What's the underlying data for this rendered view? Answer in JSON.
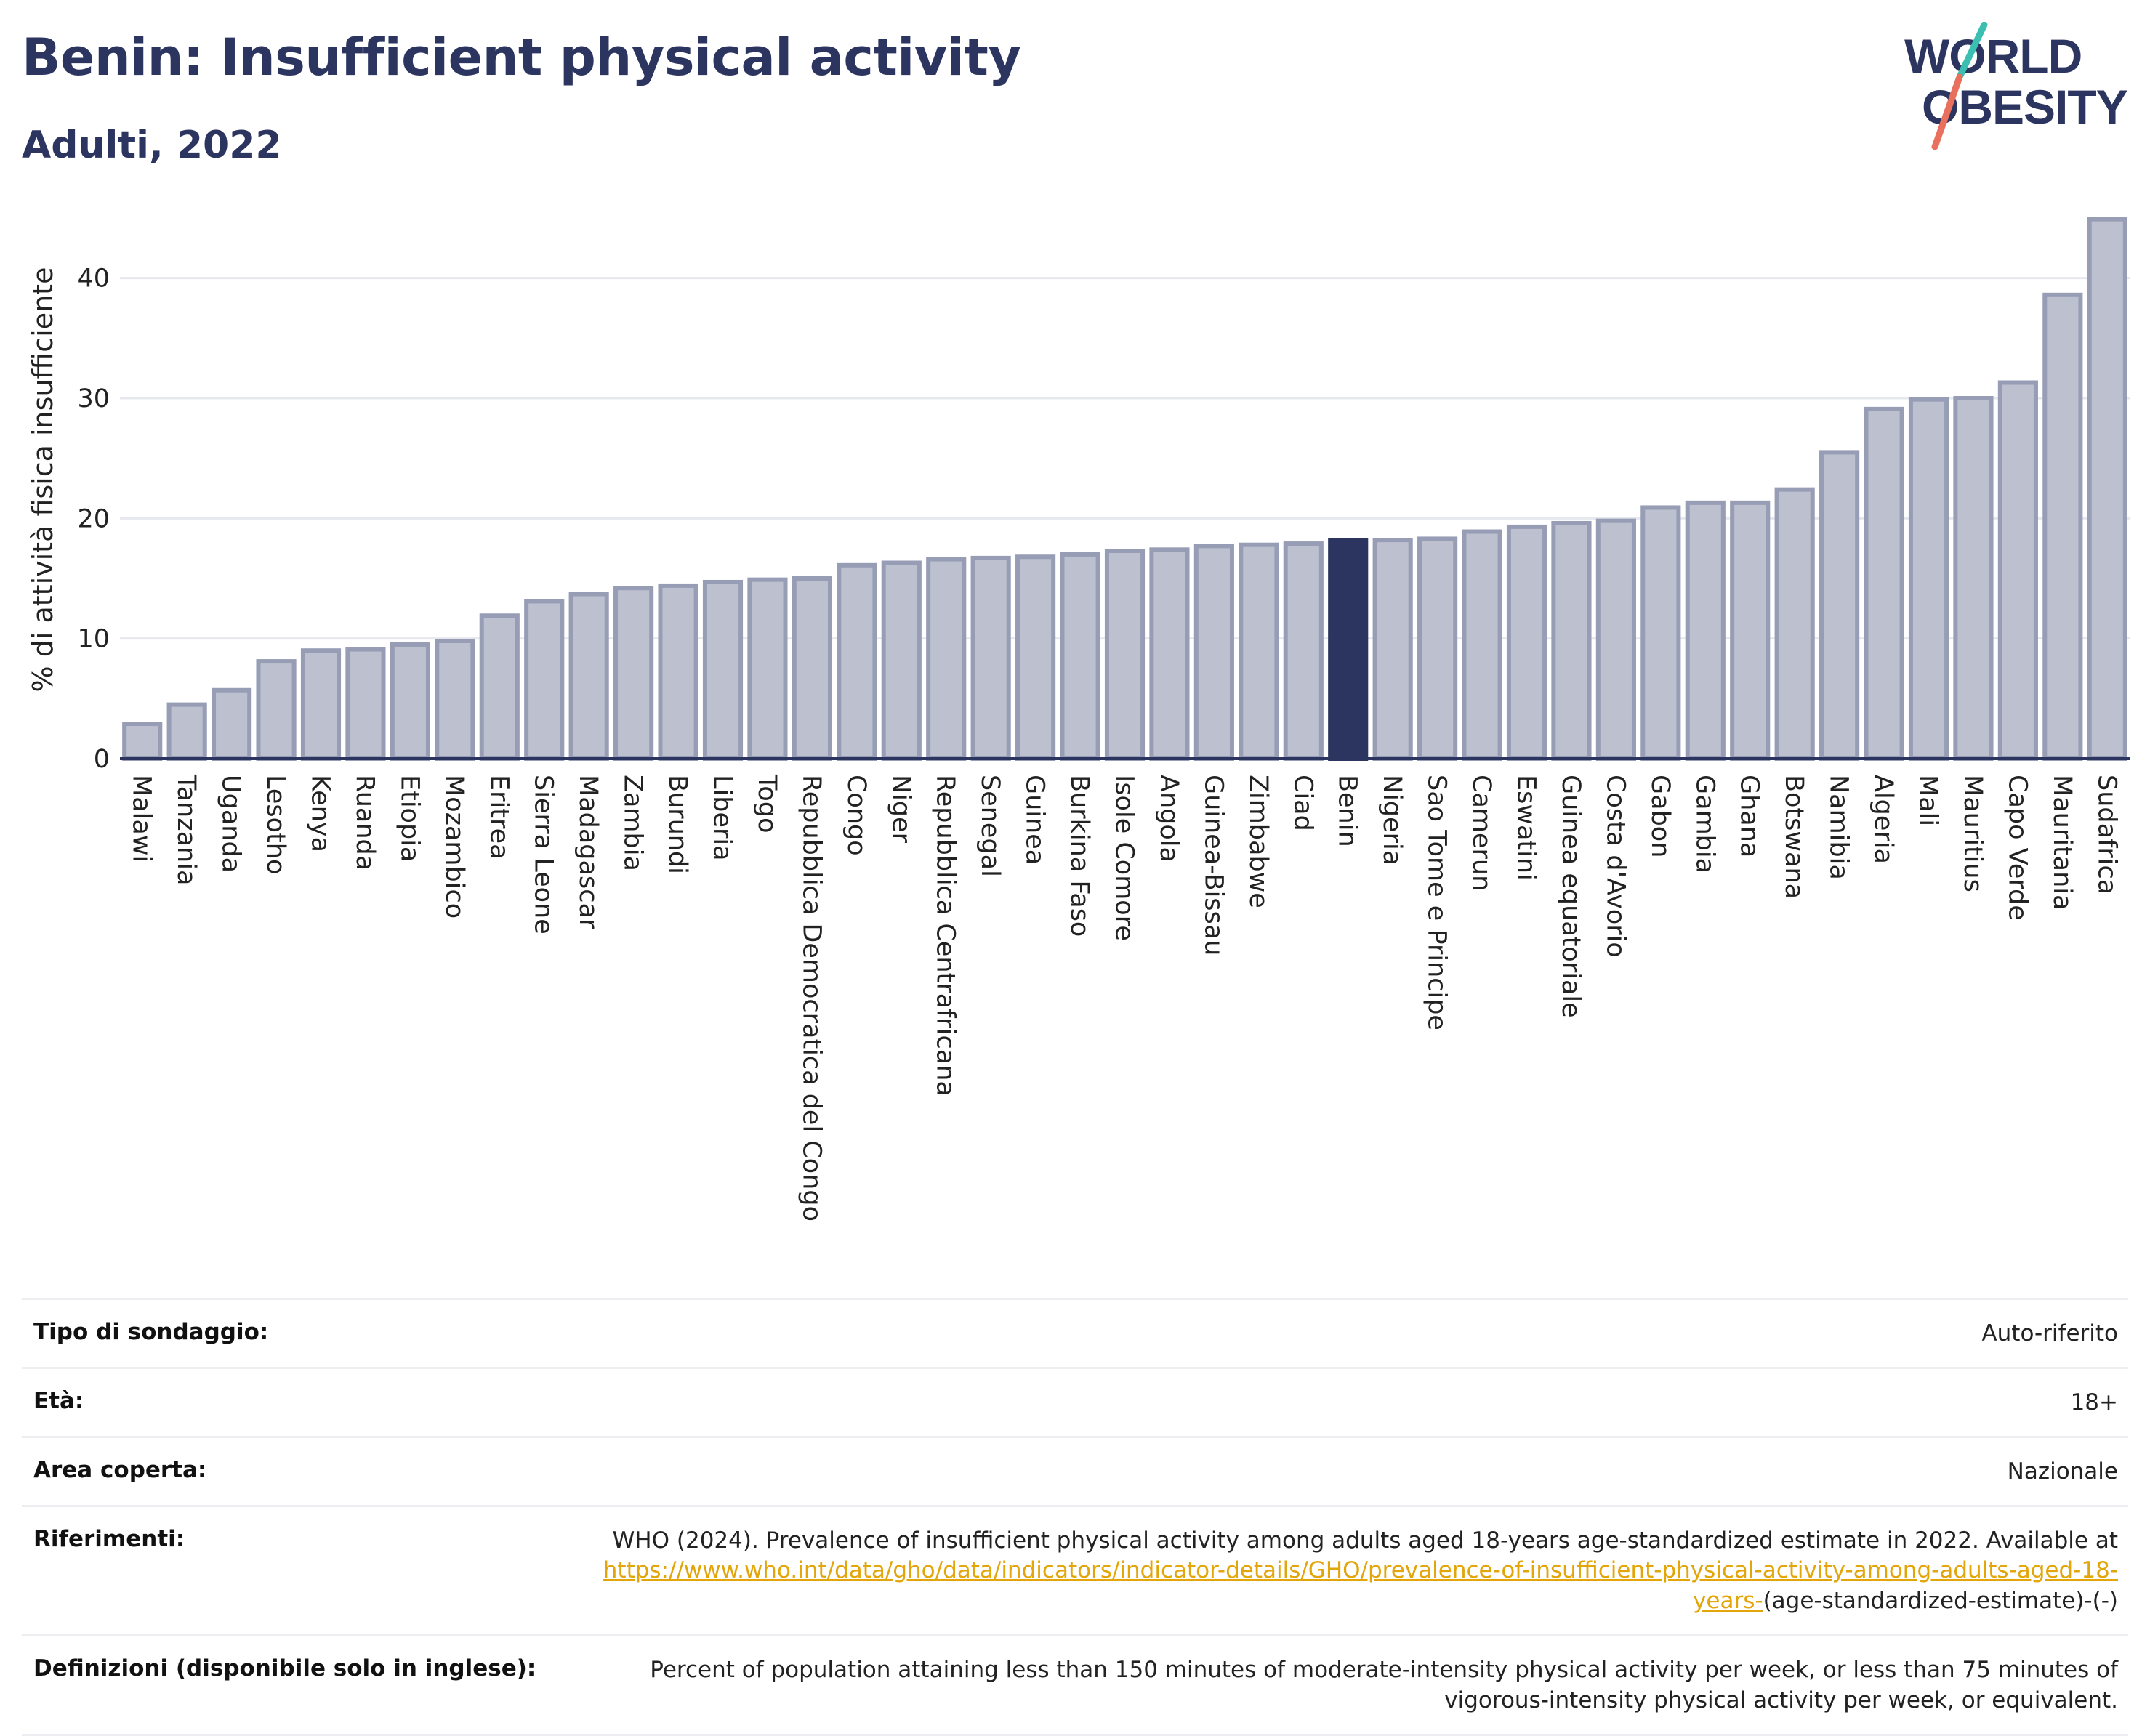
{
  "header": {
    "title": "Benin: Insufficient physical activity",
    "subtitle": "Adulti, 2022"
  },
  "logo": {
    "line1": "WORLD",
    "line2": "OBESITY",
    "colors": {
      "text": "#2c3560",
      "slash_top": "#3bbfb0",
      "slash_bottom": "#e8705c"
    }
  },
  "colors": {
    "bar": "#bcc0cf",
    "bar_border": "#979db5",
    "highlight": "#2c3560",
    "grid": "#e6e8ee",
    "axis": "#2c3560"
  },
  "chart_data": {
    "type": "bar",
    "ylabel": "% di attività fisica insufficiente",
    "xlabel": "",
    "ylim": [
      0,
      45
    ],
    "yticks": [
      0,
      10,
      20,
      30,
      40
    ],
    "grid": true,
    "highlight": "Benin",
    "categories": [
      "Malawi",
      "Tanzania",
      "Uganda",
      "Lesotho",
      "Kenya",
      "Ruanda",
      "Etiopia",
      "Mozambico",
      "Eritrea",
      "Sierra Leone",
      "Madagascar",
      "Zambia",
      "Burundi",
      "Liberia",
      "Togo",
      "Repubblica Democratica del Congo",
      "Congo",
      "Niger",
      "Repubblica Centrafricana",
      "Senegal",
      "Guinea",
      "Burkina Faso",
      "Isole Comore",
      "Angola",
      "Guinea-Bissau",
      "Zimbabwe",
      "Ciad",
      "Benin",
      "Nigeria",
      "Sao Tome e Principe",
      "Camerun",
      "Eswatini",
      "Guinea equatoriale",
      "Costa d'Avorio",
      "Gabon",
      "Gambia",
      "Ghana",
      "Botswana",
      "Namibia",
      "Algeria",
      "Mali",
      "Mauritius",
      "Capo Verde",
      "Mauritania",
      "Sudafrica"
    ],
    "values": [
      2.9,
      4.5,
      5.7,
      8.1,
      9.0,
      9.1,
      9.5,
      9.8,
      11.9,
      13.1,
      13.7,
      14.2,
      14.4,
      14.7,
      14.9,
      15.0,
      16.1,
      16.3,
      16.6,
      16.7,
      16.8,
      17.0,
      17.3,
      17.4,
      17.7,
      17.8,
      17.9,
      18.2,
      18.2,
      18.3,
      18.9,
      19.3,
      19.6,
      19.8,
      20.9,
      21.3,
      21.3,
      22.4,
      25.5,
      29.1,
      29.9,
      30.0,
      31.3,
      38.6,
      44.9
    ]
  },
  "info": {
    "rows": [
      {
        "label": "Tipo di sondaggio:",
        "value": "Auto-riferito"
      },
      {
        "label": "Età:",
        "value": "18+"
      },
      {
        "label": "Area coperta:",
        "value": "Nazionale"
      }
    ],
    "references": {
      "label": "Riferimenti:",
      "text_before": "WHO (2024). Prevalence of insufficient physical activity among adults aged 18-years age-standardized estimate in 2022. Available at ",
      "link": "https://www.who.int/data/gho/data/indicators/indicator-details/GHO/prevalence-of-insufficient-physical-activity-among-adults-aged-18-years-",
      "text_after": "(age-standardized-estimate)-(-)"
    },
    "definitions": {
      "label": "Definizioni (disponibile solo in inglese):",
      "value": "Percent of population attaining less than 150 minutes of moderate-intensity physical activity per week, or less than 75 minutes of vigorous-intensity physical activity per week, or equivalent."
    }
  }
}
